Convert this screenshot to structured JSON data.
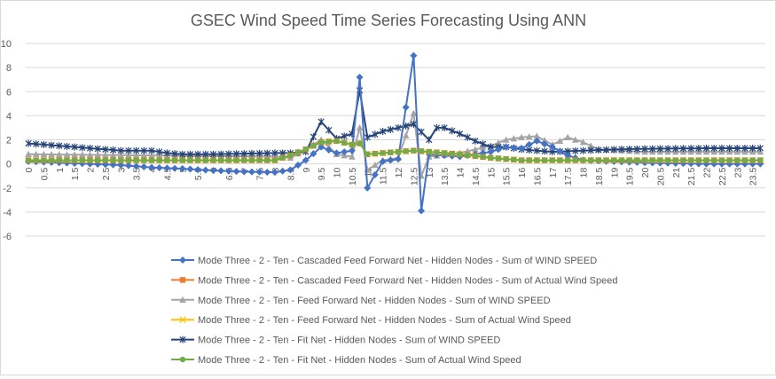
{
  "chart_data": {
    "type": "line",
    "title": "GSEC Wind Speed Time Series Forecasting Using ANN",
    "xlabel": "",
    "ylabel": "",
    "ylim": [
      -6,
      10
    ],
    "y_ticks": [
      -6,
      -4,
      -2,
      0,
      2,
      4,
      6,
      8,
      10
    ],
    "xlim": [
      0,
      23.75
    ],
    "x_step": 0.25,
    "x_tick_labels": [
      "0",
      "0.5",
      "1",
      "1.5",
      "2",
      "2.5",
      "3",
      "3.5",
      "4",
      "4.5",
      "5",
      "5.5",
      "6",
      "6.5",
      "7",
      "7.5",
      "8",
      "8.5",
      "9",
      "9.5",
      "10",
      "10.5",
      "11",
      "11.5",
      "12",
      "12.5",
      "13",
      "13.5",
      "14",
      "14.5",
      "15",
      "15.5",
      "16",
      "16.5",
      "17",
      "17.5",
      "18",
      "18.5",
      "19",
      "19.5",
      "20",
      "20.5",
      "21",
      "21.5",
      "22",
      "22.5",
      "23",
      "23.5"
    ],
    "grid": true,
    "legend_position": "bottom",
    "series": [
      {
        "name": "Mode Three - 2 - Ten - Cascaded Feed Forward Net - Hidden Nodes - Sum of WIND SPEED",
        "color": "#4472c4",
        "marker": "diamond",
        "points": [
          [
            0,
            0.2
          ],
          [
            1,
            0.1
          ],
          [
            2,
            0
          ],
          [
            3,
            -0.1
          ],
          [
            3.5,
            -0.2
          ],
          [
            4,
            -0.3
          ],
          [
            5,
            -0.4
          ],
          [
            6,
            -0.55
          ],
          [
            7,
            -0.65
          ],
          [
            8,
            -0.7
          ],
          [
            8.5,
            -0.5
          ],
          [
            9,
            0.3
          ],
          [
            9.5,
            1.4
          ],
          [
            10,
            0.9
          ],
          [
            10.5,
            1.1
          ],
          [
            10.75,
            7.2
          ],
          [
            11,
            -2.0
          ],
          [
            11.5,
            0.2
          ],
          [
            12,
            0.4
          ],
          [
            12.5,
            9.0
          ],
          [
            12.75,
            -3.9
          ],
          [
            13,
            0.8
          ],
          [
            14,
            0.6
          ],
          [
            15,
            1.0
          ],
          [
            15.5,
            1.4
          ],
          [
            16,
            1.3
          ],
          [
            16.5,
            1.9
          ],
          [
            17,
            1.4
          ],
          [
            17.5,
            0.7
          ],
          [
            18,
            0.3
          ],
          [
            20,
            0.1
          ],
          [
            22,
            0
          ],
          [
            23.75,
            0
          ]
        ]
      },
      {
        "name": "Mode Three - 2 - Ten - Cascaded Feed Forward Net - Hidden Nodes - Sum of Actual Wind Speed",
        "color": "#ed7d31",
        "marker": "square",
        "points": [
          [
            0,
            0.3
          ],
          [
            4,
            0.3
          ],
          [
            8,
            0.3
          ],
          [
            8.5,
            0.7
          ],
          [
            9,
            1.2
          ],
          [
            9.5,
            1.8
          ],
          [
            10,
            1.9
          ],
          [
            10.5,
            1.6
          ],
          [
            10.75,
            1.7
          ],
          [
            11,
            0.8
          ],
          [
            11.5,
            0.9
          ],
          [
            12,
            1.0
          ],
          [
            12.5,
            1.1
          ],
          [
            13,
            1.0
          ],
          [
            14,
            0.8
          ],
          [
            15,
            0.5
          ],
          [
            16,
            0.3
          ],
          [
            18,
            0.3
          ],
          [
            20,
            0.3
          ],
          [
            23.75,
            0.3
          ]
        ]
      },
      {
        "name": "Mode Three - 2 - Ten - Feed Forward Net - Hidden Nodes - Sum of WIND SPEED",
        "color": "#a5a5a5",
        "marker": "triangle",
        "points": [
          [
            0,
            0.8
          ],
          [
            4,
            0.7
          ],
          [
            8,
            0.6
          ],
          [
            8.5,
            0.5
          ],
          [
            9,
            1.2
          ],
          [
            9.5,
            2.0
          ],
          [
            10,
            0.8
          ],
          [
            10.5,
            0.6
          ],
          [
            10.75,
            3.0
          ],
          [
            11,
            -0.5
          ],
          [
            11.5,
            0.3
          ],
          [
            12,
            0.5
          ],
          [
            12.5,
            4.2
          ],
          [
            12.75,
            -1.0
          ],
          [
            13,
            0.6
          ],
          [
            14,
            0.9
          ],
          [
            15,
            1.5
          ],
          [
            15.5,
            2.0
          ],
          [
            16,
            2.2
          ],
          [
            16.5,
            2.3
          ],
          [
            17,
            1.6
          ],
          [
            17.5,
            2.2
          ],
          [
            18,
            1.8
          ],
          [
            18.5,
            1.2
          ],
          [
            20,
            1.0
          ],
          [
            23.75,
            1.0
          ]
        ]
      },
      {
        "name": "Mode Three - 2 - Ten - Feed Forward Net - Hidden Nodes - Sum of Actual Wind Speed",
        "color": "#ffc000",
        "marker": "x",
        "points": [
          [
            0,
            0.3
          ],
          [
            4,
            0.3
          ],
          [
            8,
            0.3
          ],
          [
            8.5,
            0.7
          ],
          [
            9,
            1.2
          ],
          [
            9.5,
            1.8
          ],
          [
            10,
            1.9
          ],
          [
            10.5,
            1.6
          ],
          [
            10.75,
            1.7
          ],
          [
            11,
            0.8
          ],
          [
            11.5,
            0.9
          ],
          [
            12,
            1.0
          ],
          [
            12.5,
            1.1
          ],
          [
            13,
            1.0
          ],
          [
            14,
            0.8
          ],
          [
            15,
            0.5
          ],
          [
            16,
            0.3
          ],
          [
            18,
            0.3
          ],
          [
            20,
            0.3
          ],
          [
            23.75,
            0.3
          ]
        ]
      },
      {
        "name": "Mode Three - 2 - Ten - Fit Net - Hidden Nodes - Sum of WIND SPEED",
        "color": "#264478",
        "marker": "star",
        "points": [
          [
            0,
            1.7
          ],
          [
            1,
            1.5
          ],
          [
            2,
            1.3
          ],
          [
            3,
            1.1
          ],
          [
            4,
            1.1
          ],
          [
            4.5,
            0.9
          ],
          [
            5,
            0.8
          ],
          [
            6,
            0.8
          ],
          [
            7,
            0.85
          ],
          [
            8,
            0.9
          ],
          [
            8.5,
            0.9
          ],
          [
            9,
            1.0
          ],
          [
            9.5,
            3.5
          ],
          [
            10,
            2.1
          ],
          [
            10.5,
            2.5
          ],
          [
            10.75,
            6.1
          ],
          [
            11,
            2.2
          ],
          [
            11.5,
            2.7
          ],
          [
            12,
            3.0
          ],
          [
            12.5,
            3.3
          ],
          [
            13,
            2.0
          ],
          [
            13.25,
            3.0
          ],
          [
            13.5,
            3.0
          ],
          [
            14,
            2.5
          ],
          [
            14.5,
            1.9
          ],
          [
            15,
            1.4
          ],
          [
            15.5,
            1.4
          ],
          [
            16,
            1.2
          ],
          [
            16.5,
            1.1
          ],
          [
            17,
            1.0
          ],
          [
            18,
            1.1
          ],
          [
            19,
            1.2
          ],
          [
            20,
            1.25
          ],
          [
            22,
            1.3
          ],
          [
            23.75,
            1.3
          ]
        ]
      },
      {
        "name": "Mode Three - 2 - Ten - Fit Net - Hidden Nodes - Sum of Actual Wind Speed",
        "color": "#70ad47",
        "marker": "circle",
        "points": [
          [
            0,
            0.3
          ],
          [
            4,
            0.3
          ],
          [
            8,
            0.3
          ],
          [
            8.5,
            0.7
          ],
          [
            9,
            1.2
          ],
          [
            9.5,
            1.8
          ],
          [
            10,
            1.9
          ],
          [
            10.5,
            1.6
          ],
          [
            10.75,
            1.7
          ],
          [
            11,
            0.8
          ],
          [
            11.5,
            0.9
          ],
          [
            12,
            1.0
          ],
          [
            12.5,
            1.1
          ],
          [
            13,
            1.0
          ],
          [
            14,
            0.8
          ],
          [
            15,
            0.5
          ],
          [
            16,
            0.3
          ],
          [
            18,
            0.3
          ],
          [
            20,
            0.3
          ],
          [
            23.75,
            0.3
          ]
        ]
      }
    ]
  }
}
